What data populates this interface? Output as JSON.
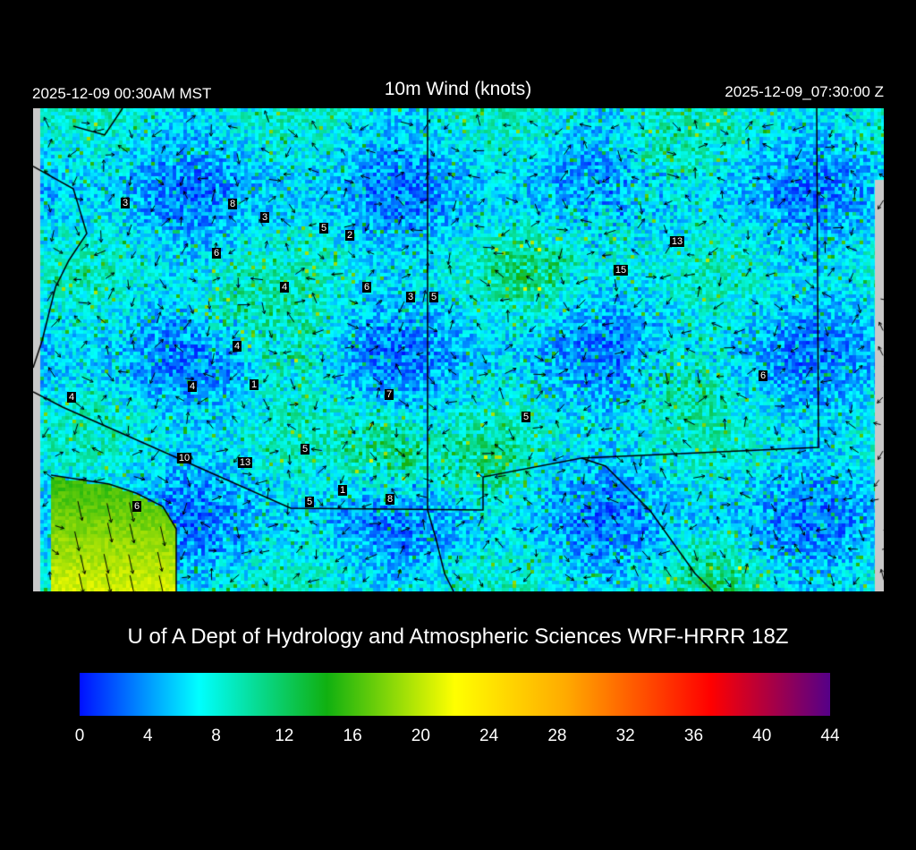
{
  "header": {
    "title": "10m Wind (knots)",
    "local_time": "2025-12-09 00:30AM MST",
    "utc_time": "2025-12-09_07:30:00 Z"
  },
  "map": {
    "field": "10m wind speed (knots) with wind direction arrows",
    "station_labels": [
      "3",
      "8",
      "3",
      "5",
      "2",
      "6",
      "4",
      "6",
      "3",
      "5",
      "13",
      "15",
      "4",
      "4",
      "1",
      "7",
      "6",
      "4",
      "5",
      "10",
      "13",
      "5",
      "1",
      "8",
      "5",
      "6"
    ]
  },
  "credit": "U of A Dept of Hydrology and Atmospheric Sciences WRF-HRRR 18Z",
  "colorbar": {
    "ticks": [
      "0",
      "4",
      "8",
      "12",
      "16",
      "20",
      "24",
      "28",
      "32",
      "36",
      "40",
      "44"
    ],
    "range": [
      0,
      44
    ],
    "stops": [
      {
        "value": 0,
        "color": "#0010ff"
      },
      {
        "value": 7,
        "color": "#00ffff"
      },
      {
        "value": 14.5,
        "color": "#10b010"
      },
      {
        "value": 22,
        "color": "#ffff00"
      },
      {
        "value": 28.5,
        "color": "#ffaa00"
      },
      {
        "value": 37,
        "color": "#ff0000"
      },
      {
        "value": 44,
        "color": "#550088"
      }
    ]
  }
}
